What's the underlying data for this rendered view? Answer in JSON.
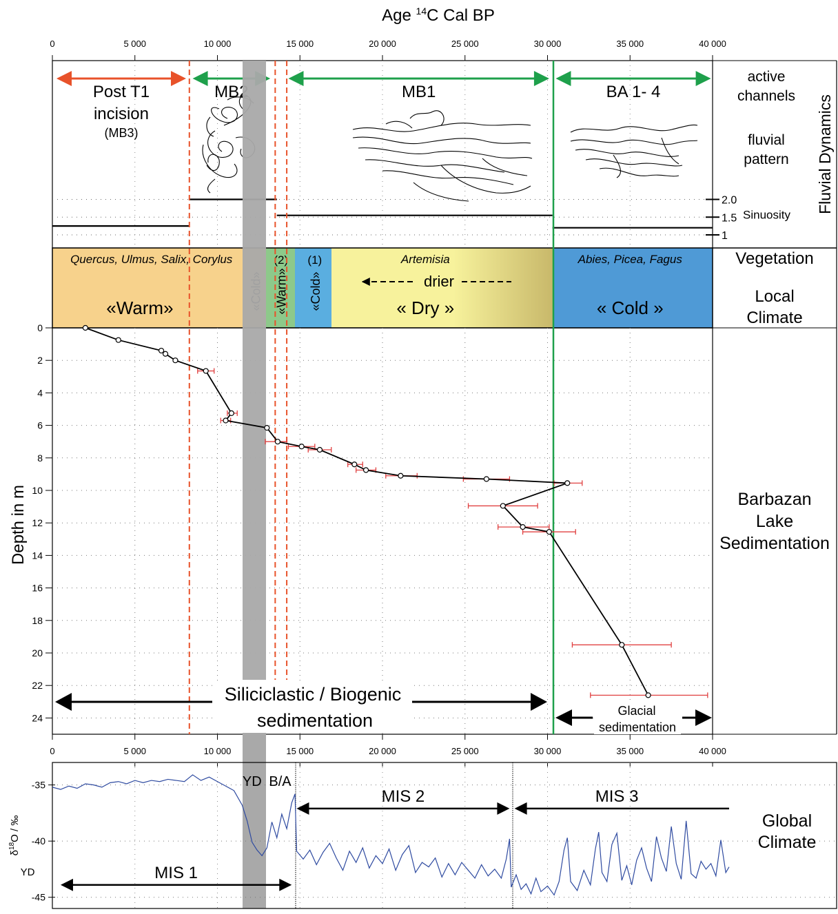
{
  "chart_data": [
    {
      "type": "scatter",
      "title": "Age 14C Cal BP",
      "title_main": "Age ",
      "title_sup": "14",
      "title_tail": "C Cal BP",
      "xlabel": "Age 14C Cal BP",
      "ylabel": "Depth in m",
      "xlim": [
        0,
        40000
      ],
      "ylim": [
        25,
        0
      ],
      "x_tick_labels": [
        "0",
        "5 000",
        "10 000",
        "15 000",
        "20 000",
        "25 000",
        "30 000",
        "35 000",
        "40 000"
      ],
      "y_tick_labels": [
        "0",
        "2",
        "4",
        "6",
        "8",
        "10",
        "12",
        "14",
        "16",
        "18",
        "20",
        "22",
        "24"
      ],
      "grid": true,
      "series": [
        {
          "points": [
            {
              "x": 2000,
              "y": 0.0
            },
            {
              "x": 4000,
              "y": 0.75
            },
            {
              "x": 6600,
              "y": 1.4
            },
            {
              "x": 6850,
              "y": 1.6
            },
            {
              "x": 7450,
              "y": 2.0
            },
            {
              "x": 9300,
              "y": 2.65,
              "err": [
                8800,
                9800
              ]
            },
            {
              "x": 10850,
              "y": 5.25,
              "err": [
                10600,
                11200
              ]
            },
            {
              "x": 10500,
              "y": 5.7,
              "err": [
                10200,
                10800
              ]
            },
            {
              "x": 13000,
              "y": 6.15
            },
            {
              "x": 13650,
              "y": 7.0,
              "err": [
                12900,
                14200
              ]
            },
            {
              "x": 15100,
              "y": 7.3,
              "err": [
                14300,
                15900
              ]
            },
            {
              "x": 16200,
              "y": 7.5,
              "err": [
                15500,
                16900
              ]
            },
            {
              "x": 18300,
              "y": 8.4,
              "err": [
                17900,
                18800
              ]
            },
            {
              "x": 19000,
              "y": 8.75,
              "err": [
                18400,
                19600
              ]
            },
            {
              "x": 21100,
              "y": 9.1,
              "err": [
                20200,
                22100
              ]
            },
            {
              "x": 26300,
              "y": 9.3,
              "err": [
                24900,
                27700
              ]
            },
            {
              "x": 31200,
              "y": 9.55,
              "err": [
                30400,
                32100
              ]
            },
            {
              "x": 27300,
              "y": 10.95,
              "err": [
                25200,
                29400
              ]
            },
            {
              "x": 28500,
              "y": 12.25,
              "err": [
                27000,
                30100
              ]
            },
            {
              "x": 30100,
              "y": 12.55,
              "err": [
                28500,
                31700
              ]
            },
            {
              "x": 34500,
              "y": 19.5,
              "err": [
                31500,
                37500
              ]
            },
            {
              "x": 36100,
              "y": 22.6,
              "err": [
                32600,
                39700
              ]
            }
          ]
        }
      ]
    },
    {
      "type": "line",
      "xlim": [
        0,
        40000
      ],
      "ylim": [
        -46,
        -33
      ],
      "ylabel_main": "δ",
      "ylabel_sup": "18",
      "ylabel_tail": "O / ‰",
      "x_tick_labels": [
        "0",
        "5 000",
        "10 000",
        "15 000",
        "20 000",
        "25 000",
        "30 000",
        "35 000",
        "40 000"
      ],
      "y_tick_labels": [
        "-35",
        "-40",
        "-45"
      ],
      "extra_label": "YD",
      "series": [
        {
          "x": [
            0,
            500,
            1000,
            1500,
            2000,
            2500,
            3000,
            3500,
            4000,
            4500,
            5000,
            5500,
            6000,
            6500,
            7000,
            7500,
            8000,
            8500,
            9000,
            9500,
            10000,
            10500,
            11000,
            11500,
            11800,
            12100,
            12400,
            12700,
            13000,
            13300,
            13600,
            13900,
            14200,
            14500,
            14700,
            14800,
            15200,
            15600,
            16000,
            16400,
            16800,
            17200,
            17600,
            18000,
            18400,
            18800,
            19200,
            19600,
            20000,
            20400,
            20800,
            21200,
            21600,
            22000,
            22400,
            22800,
            23200,
            23600,
            24000,
            24400,
            24800,
            25200,
            25600,
            26000,
            26400,
            26800,
            27200,
            27500,
            27700,
            27800,
            28100,
            28400,
            28700,
            29000,
            29300,
            29600,
            30000,
            30400,
            30700,
            31000,
            31200,
            31400,
            31800,
            32200,
            32600,
            32900,
            33100,
            33300,
            33600,
            33900,
            34200,
            34500,
            34800,
            35100,
            35400,
            35700,
            36000,
            36300,
            36600,
            36900,
            37200,
            37500,
            37800,
            38100,
            38400,
            38700,
            39000,
            39300,
            39600,
            39900,
            40200,
            40500,
            40800,
            41000
          ],
          "values": [
            -35.2,
            -35.4,
            -35.1,
            -35.3,
            -34.9,
            -35.0,
            -35.2,
            -34.8,
            -34.7,
            -34.9,
            -34.6,
            -34.8,
            -34.6,
            -34.7,
            -34.5,
            -34.6,
            -34.7,
            -34.1,
            -34.6,
            -34.3,
            -34.7,
            -35.1,
            -35.5,
            -36.8,
            -38.2,
            -40.1,
            -40.8,
            -41.3,
            -40.6,
            -38.3,
            -39.7,
            -37.6,
            -38.9,
            -36.6,
            -35.8,
            -40.9,
            -41.6,
            -40.8,
            -42.1,
            -41.0,
            -40.2,
            -41.5,
            -42.6,
            -40.9,
            -41.9,
            -40.6,
            -42.4,
            -41.3,
            -42.0,
            -40.7,
            -42.6,
            -41.2,
            -40.4,
            -42.8,
            -41.9,
            -42.3,
            -41.5,
            -43.2,
            -42.0,
            -43.0,
            -41.9,
            -42.6,
            -43.3,
            -42.1,
            -43.1,
            -42.5,
            -43.3,
            -41.6,
            -39.8,
            -44.1,
            -43.0,
            -44.3,
            -43.8,
            -44.7,
            -43.3,
            -44.5,
            -44.0,
            -44.8,
            -43.6,
            -40.8,
            -39.7,
            -43.6,
            -44.4,
            -42.6,
            -43.9,
            -40.7,
            -39.2,
            -42.8,
            -43.6,
            -40.3,
            -39.3,
            -43.5,
            -42.2,
            -43.9,
            -41.7,
            -40.6,
            -42.4,
            -43.6,
            -39.6,
            -41.5,
            -42.7,
            -38.7,
            -42.0,
            -43.4,
            -38.2,
            -42.9,
            -43.3,
            -41.8,
            -42.5,
            -42.0,
            -43.1,
            -39.9,
            -42.8,
            -42.3
          ]
        }
      ]
    }
  ],
  "fluvial": {
    "arrows": [
      {
        "label_lines": [
          "Post T1",
          "incision"
        ],
        "sub": "(MB3)",
        "from": 250,
        "to": 8100,
        "color": "#e8522a"
      },
      {
        "label_lines": [
          "MB2"
        ],
        "from": 8500,
        "to": 13200,
        "color": "#1ea04b"
      },
      {
        "label_lines": [
          "MB1"
        ],
        "from": 14300,
        "to": 30100,
        "color": "#1ea04b"
      },
      {
        "label_lines": [
          "BA 1- 4"
        ],
        "from": 30500,
        "to": 39900,
        "color": "#1ea04b"
      }
    ],
    "right_labels": [
      "active",
      "channels",
      "fluvial",
      "pattern"
    ],
    "sinuosity_ticks": [
      "2.0",
      "1.5",
      "1"
    ],
    "sinuosity_label": "Sinuosity",
    "side_title": "Fluvial Dynamics",
    "sinuosity_levels": [
      {
        "from": 0,
        "to": 8300,
        "value": 1.25
      },
      {
        "from": 8300,
        "to": 13600,
        "value": 2.0
      },
      {
        "from": 13600,
        "to": 30300,
        "value": 1.55
      },
      {
        "from": 30300,
        "to": 40000,
        "value": 1.2
      }
    ]
  },
  "vegetation": {
    "taxa": [
      {
        "text": "Quercus, Ulmus, Salix, Corylus",
        "x": 6000
      },
      {
        "text": "Artemisia",
        "x": 22600
      },
      {
        "text": "Abies, Picea, Fagus",
        "x": 35000
      }
    ],
    "climate": [
      {
        "text": "«Warm»",
        "x": 5300,
        "vertical": false
      },
      {
        "text": "«Cold»",
        "x": 12300,
        "vertical": true
      },
      {
        "text": "«Warm»",
        "x": 13850,
        "vertical": true
      },
      {
        "text": "«Cold»",
        "x": 15900,
        "vertical": true
      },
      {
        "text": "« Dry »",
        "x": 22600,
        "vertical": false
      },
      {
        "text": "« Cold »",
        "x": 35000,
        "vertical": false
      }
    ],
    "phase_numbers": [
      {
        "text": "(2)",
        "x": 13850
      },
      {
        "text": "(1)",
        "x": 15900
      }
    ],
    "drier": "drier",
    "right_labels": [
      "Vegetation",
      "Local",
      "Climate"
    ]
  },
  "sedimentation": {
    "label_lines": [
      "Siliciclastic / Biogenic",
      "sedimentation"
    ],
    "glacial_lines": [
      "Glacial",
      "sedimentation"
    ],
    "right_labels": [
      "Barbazan",
      "Lake",
      "Sedimentation"
    ]
  },
  "global_climate": {
    "right_labels": [
      "Global",
      "Climate"
    ],
    "period_labels": [
      {
        "text": "YD",
        "x": 12100
      },
      {
        "text": "B/A",
        "x": 13800
      }
    ],
    "mis": [
      {
        "label": "MIS 1",
        "from": 500,
        "to": 14500,
        "value": -43.9
      },
      {
        "label": "MIS 2",
        "from": 14800,
        "to": 27700,
        "value": -37.1
      },
      {
        "label": "MIS 3",
        "from": 28000,
        "to": 41000,
        "value": -37.1
      }
    ]
  },
  "colors": {
    "warm": "#f7d28c",
    "warm_green": "#8dc98a",
    "cold_blue": "#5aaee0",
    "dry": "#f7f29c",
    "dry_grad_end": "#c8b86a",
    "cold": "#4f9ad6",
    "orange_arrow": "#e8522a",
    "green": "#1ea04b",
    "grey_band": "#a9a9a9",
    "red_dashed": "#e8522a",
    "error_bar": "#e04040",
    "d18o": "#2e4aa0"
  }
}
